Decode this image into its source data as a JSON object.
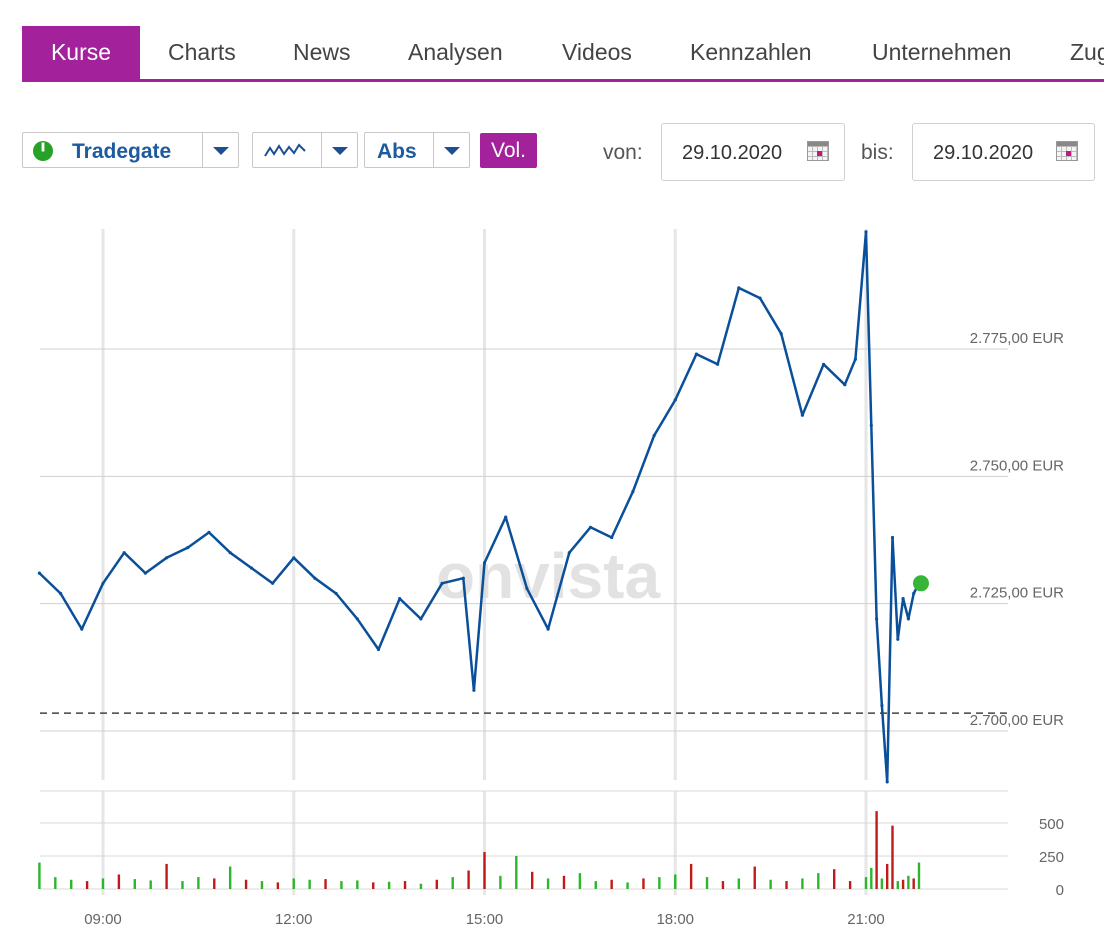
{
  "tabs": [
    {
      "label": "Kurse",
      "active": true
    },
    {
      "label": "Charts"
    },
    {
      "label": "News"
    },
    {
      "label": "Analysen"
    },
    {
      "label": "Videos"
    },
    {
      "label": "Kennzahlen"
    },
    {
      "label": "Unternehmen"
    },
    {
      "label": "Zug"
    }
  ],
  "controls": {
    "exchange": "Tradegate",
    "chart_style_icon": "line-chart-icon",
    "scale": "Abs",
    "volume_button": "Vol.",
    "from_label": "von:",
    "from_date": "29.10.2020",
    "to_label": "bis:",
    "to_date": "29.10.2020",
    "calendar_icon": "calendar-icon",
    "status_icon": "power-status-icon"
  },
  "watermark": "onvista",
  "colors": {
    "accent": "#a3219b",
    "line": "#0a4f9a",
    "up": "#2db52d",
    "down": "#c01a1a",
    "last_point": "#36b536"
  },
  "chart_data": [
    {
      "type": "line",
      "title": "",
      "x_ticks": [
        "09:00",
        "12:00",
        "15:00",
        "18:00",
        "21:00"
      ],
      "y_ticks": [
        "2.700,00 EUR",
        "2.725,00 EUR",
        "2.750,00 EUR",
        "2.775,00 EUR"
      ],
      "ylim": [
        2688,
        2799
      ],
      "reference_line": 2703.5,
      "series": [
        {
          "x": [
            "08:00",
            "08:20",
            "08:40",
            "09:00",
            "09:20",
            "09:40",
            "10:00",
            "10:20",
            "10:40",
            "11:00",
            "11:20",
            "11:40",
            "12:00",
            "12:20",
            "12:40",
            "13:00",
            "13:20",
            "13:40",
            "14:00",
            "14:20",
            "14:40",
            "14:50",
            "15:00",
            "15:20",
            "15:40",
            "16:00",
            "16:20",
            "16:40",
            "17:00",
            "17:20",
            "17:40",
            "18:00",
            "18:20",
            "18:40",
            "19:00",
            "19:20",
            "19:40",
            "20:00",
            "20:20",
            "20:40",
            "20:50",
            "21:00",
            "21:05",
            "21:10",
            "21:15",
            "21:20",
            "21:25",
            "21:30",
            "21:35",
            "21:40",
            "21:45",
            "21:50"
          ],
          "values": [
            2731,
            2727,
            2720,
            2729,
            2735,
            2731,
            2734,
            2736,
            2739,
            2735,
            2732,
            2729,
            2734,
            2730,
            2727,
            2722,
            2716,
            2726,
            2722,
            2729,
            2730,
            2708,
            2733,
            2742,
            2728,
            2720,
            2735,
            2740,
            2738,
            2747,
            2758,
            2765,
            2774,
            2772,
            2787,
            2785,
            2778,
            2762,
            2772,
            2768,
            2773,
            2798,
            2760,
            2722,
            2705,
            2690,
            2738,
            2718,
            2726,
            2722,
            2727,
            2729
          ]
        }
      ]
    },
    {
      "type": "bar",
      "title": "",
      "x_ticks": [
        "09:00",
        "12:00",
        "15:00",
        "18:00",
        "21:00"
      ],
      "y_ticks": [
        "0",
        "250",
        "500"
      ],
      "ylim": [
        0,
        750
      ],
      "x": [
        "08:00",
        "08:15",
        "08:30",
        "08:45",
        "09:00",
        "09:15",
        "09:30",
        "09:45",
        "10:00",
        "10:15",
        "10:30",
        "10:45",
        "11:00",
        "11:15",
        "11:30",
        "11:45",
        "12:00",
        "12:15",
        "12:30",
        "12:45",
        "13:00",
        "13:15",
        "13:30",
        "13:45",
        "14:00",
        "14:15",
        "14:30",
        "14:45",
        "15:00",
        "15:15",
        "15:30",
        "15:45",
        "16:00",
        "16:15",
        "16:30",
        "16:45",
        "17:00",
        "17:15",
        "17:30",
        "17:45",
        "18:00",
        "18:15",
        "18:30",
        "18:45",
        "19:00",
        "19:15",
        "19:30",
        "19:45",
        "20:00",
        "20:15",
        "20:30",
        "20:45",
        "21:00",
        "21:05",
        "21:10",
        "21:15",
        "21:20",
        "21:25",
        "21:30",
        "21:35",
        "21:40",
        "21:45",
        "21:50"
      ],
      "values": [
        200,
        90,
        70,
        60,
        80,
        110,
        75,
        65,
        190,
        60,
        90,
        80,
        170,
        70,
        60,
        50,
        80,
        70,
        75,
        60,
        65,
        50,
        55,
        60,
        40,
        70,
        90,
        140,
        280,
        100,
        250,
        130,
        80,
        100,
        120,
        60,
        70,
        50,
        80,
        90,
        110,
        190,
        90,
        60,
        80,
        170,
        70,
        60,
        80,
        120,
        150,
        60,
        90,
        160,
        590,
        80,
        190,
        480,
        60,
        70,
        100,
        80,
        200
      ],
      "direction": [
        "up",
        "up",
        "up",
        "down",
        "up",
        "down",
        "up",
        "up",
        "down",
        "up",
        "up",
        "down",
        "up",
        "down",
        "up",
        "down",
        "up",
        "up",
        "down",
        "up",
        "up",
        "down",
        "up",
        "down",
        "up",
        "down",
        "up",
        "down",
        "down",
        "up",
        "up",
        "down",
        "up",
        "down",
        "up",
        "up",
        "down",
        "up",
        "down",
        "up",
        "up",
        "down",
        "up",
        "down",
        "up",
        "down",
        "up",
        "down",
        "up",
        "up",
        "down",
        "down",
        "up",
        "up",
        "down",
        "up",
        "down",
        "down",
        "up",
        "down",
        "up",
        "down",
        "up"
      ]
    }
  ]
}
